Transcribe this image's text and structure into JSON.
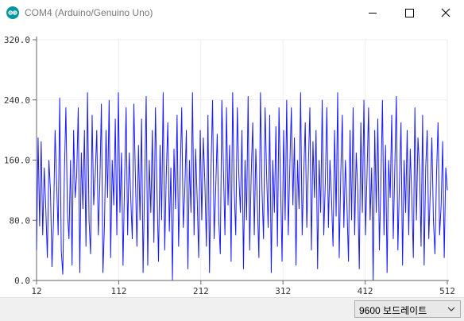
{
  "window": {
    "title": "COM4 (Arduino/Genuino Uno)",
    "icon": "arduino-icon",
    "controls": [
      "minimize-icon",
      "maximize-icon",
      "close-icon"
    ]
  },
  "plotter": {
    "baud_rate_label": "9600 보드레이트"
  },
  "colors": {
    "series": "#1a1aff",
    "axis": "#666666",
    "grid": "#eeeeee",
    "accent": "#00979c"
  },
  "chart_data": {
    "type": "line",
    "grid": true,
    "xlim": [
      12,
      512
    ],
    "ylim": [
      0,
      320
    ],
    "x_ticks": [
      "12",
      "112",
      "212",
      "312",
      "412",
      "512"
    ],
    "y_ticks": [
      "0.0",
      "80.0",
      "160.0",
      "240.0",
      "320.0"
    ],
    "x_start": 12,
    "series": [
      {
        "values": [
          40,
          190,
          72,
          185,
          60,
          150,
          95,
          30,
          160,
          120,
          18,
          80,
          200,
          130,
          60,
          243,
          40,
          8,
          140,
          230,
          90,
          55,
          160,
          20,
          200,
          110,
          140,
          230,
          10,
          170,
          95,
          200,
          45,
          250,
          80,
          35,
          220,
          100,
          140,
          200,
          60,
          130,
          235,
          10,
          75,
          200,
          110,
          240,
          30,
          160,
          100,
          215,
          60,
          250,
          90,
          170,
          20,
          130,
          230,
          60,
          170,
          110,
          55,
          235,
          140,
          45,
          180,
          80,
          215,
          10,
          130,
          245,
          20,
          160,
          90,
          200,
          50,
          230,
          120,
          25,
          180,
          80,
          250,
          40,
          140,
          210,
          65,
          150,
          0,
          175,
          95,
          220,
          45,
          140,
          230,
          70,
          120,
          200,
          15,
          160,
          90,
          250,
          60,
          175,
          110,
          30,
          200,
          80,
          190,
          130,
          45,
          220,
          10,
          150,
          240,
          55,
          120,
          195,
          80,
          35,
          240,
          150,
          60,
          230,
          100,
          180,
          25,
          250,
          120,
          60,
          230,
          140,
          90,
          200,
          15,
          160,
          80,
          245,
          40,
          140,
          210,
          60,
          175,
          100,
          30,
          250,
          120,
          55,
          230,
          140,
          70,
          220,
          10,
          160,
          90,
          205,
          45,
          230,
          130,
          25,
          200,
          80,
          240,
          60,
          150,
          230,
          100,
          190,
          20,
          160,
          95,
          250,
          60,
          140,
          210,
          70,
          150,
          230,
          40,
          185,
          110,
          200,
          15,
          160,
          90,
          240,
          60,
          130,
          230,
          70,
          160,
          110,
          45,
          200,
          85,
          250,
          30,
          140,
          220,
          70,
          160,
          100,
          25,
          200,
          80,
          230,
          60,
          170,
          120,
          15,
          210,
          90,
          240,
          60,
          140,
          230,
          80,
          150,
          0,
          200,
          90,
          215,
          40,
          130,
          240,
          60,
          180,
          10,
          160,
          110,
          220,
          55,
          150,
          245,
          40,
          130,
          210,
          20,
          160,
          90,
          200,
          60,
          175,
          110,
          30,
          230,
          80,
          190,
          150,
          45,
          220,
          20,
          150,
          200,
          55,
          120,
          190,
          80,
          35,
          140,
          210,
          60,
          100,
          185,
          30,
          150,
          120
        ]
      }
    ]
  }
}
